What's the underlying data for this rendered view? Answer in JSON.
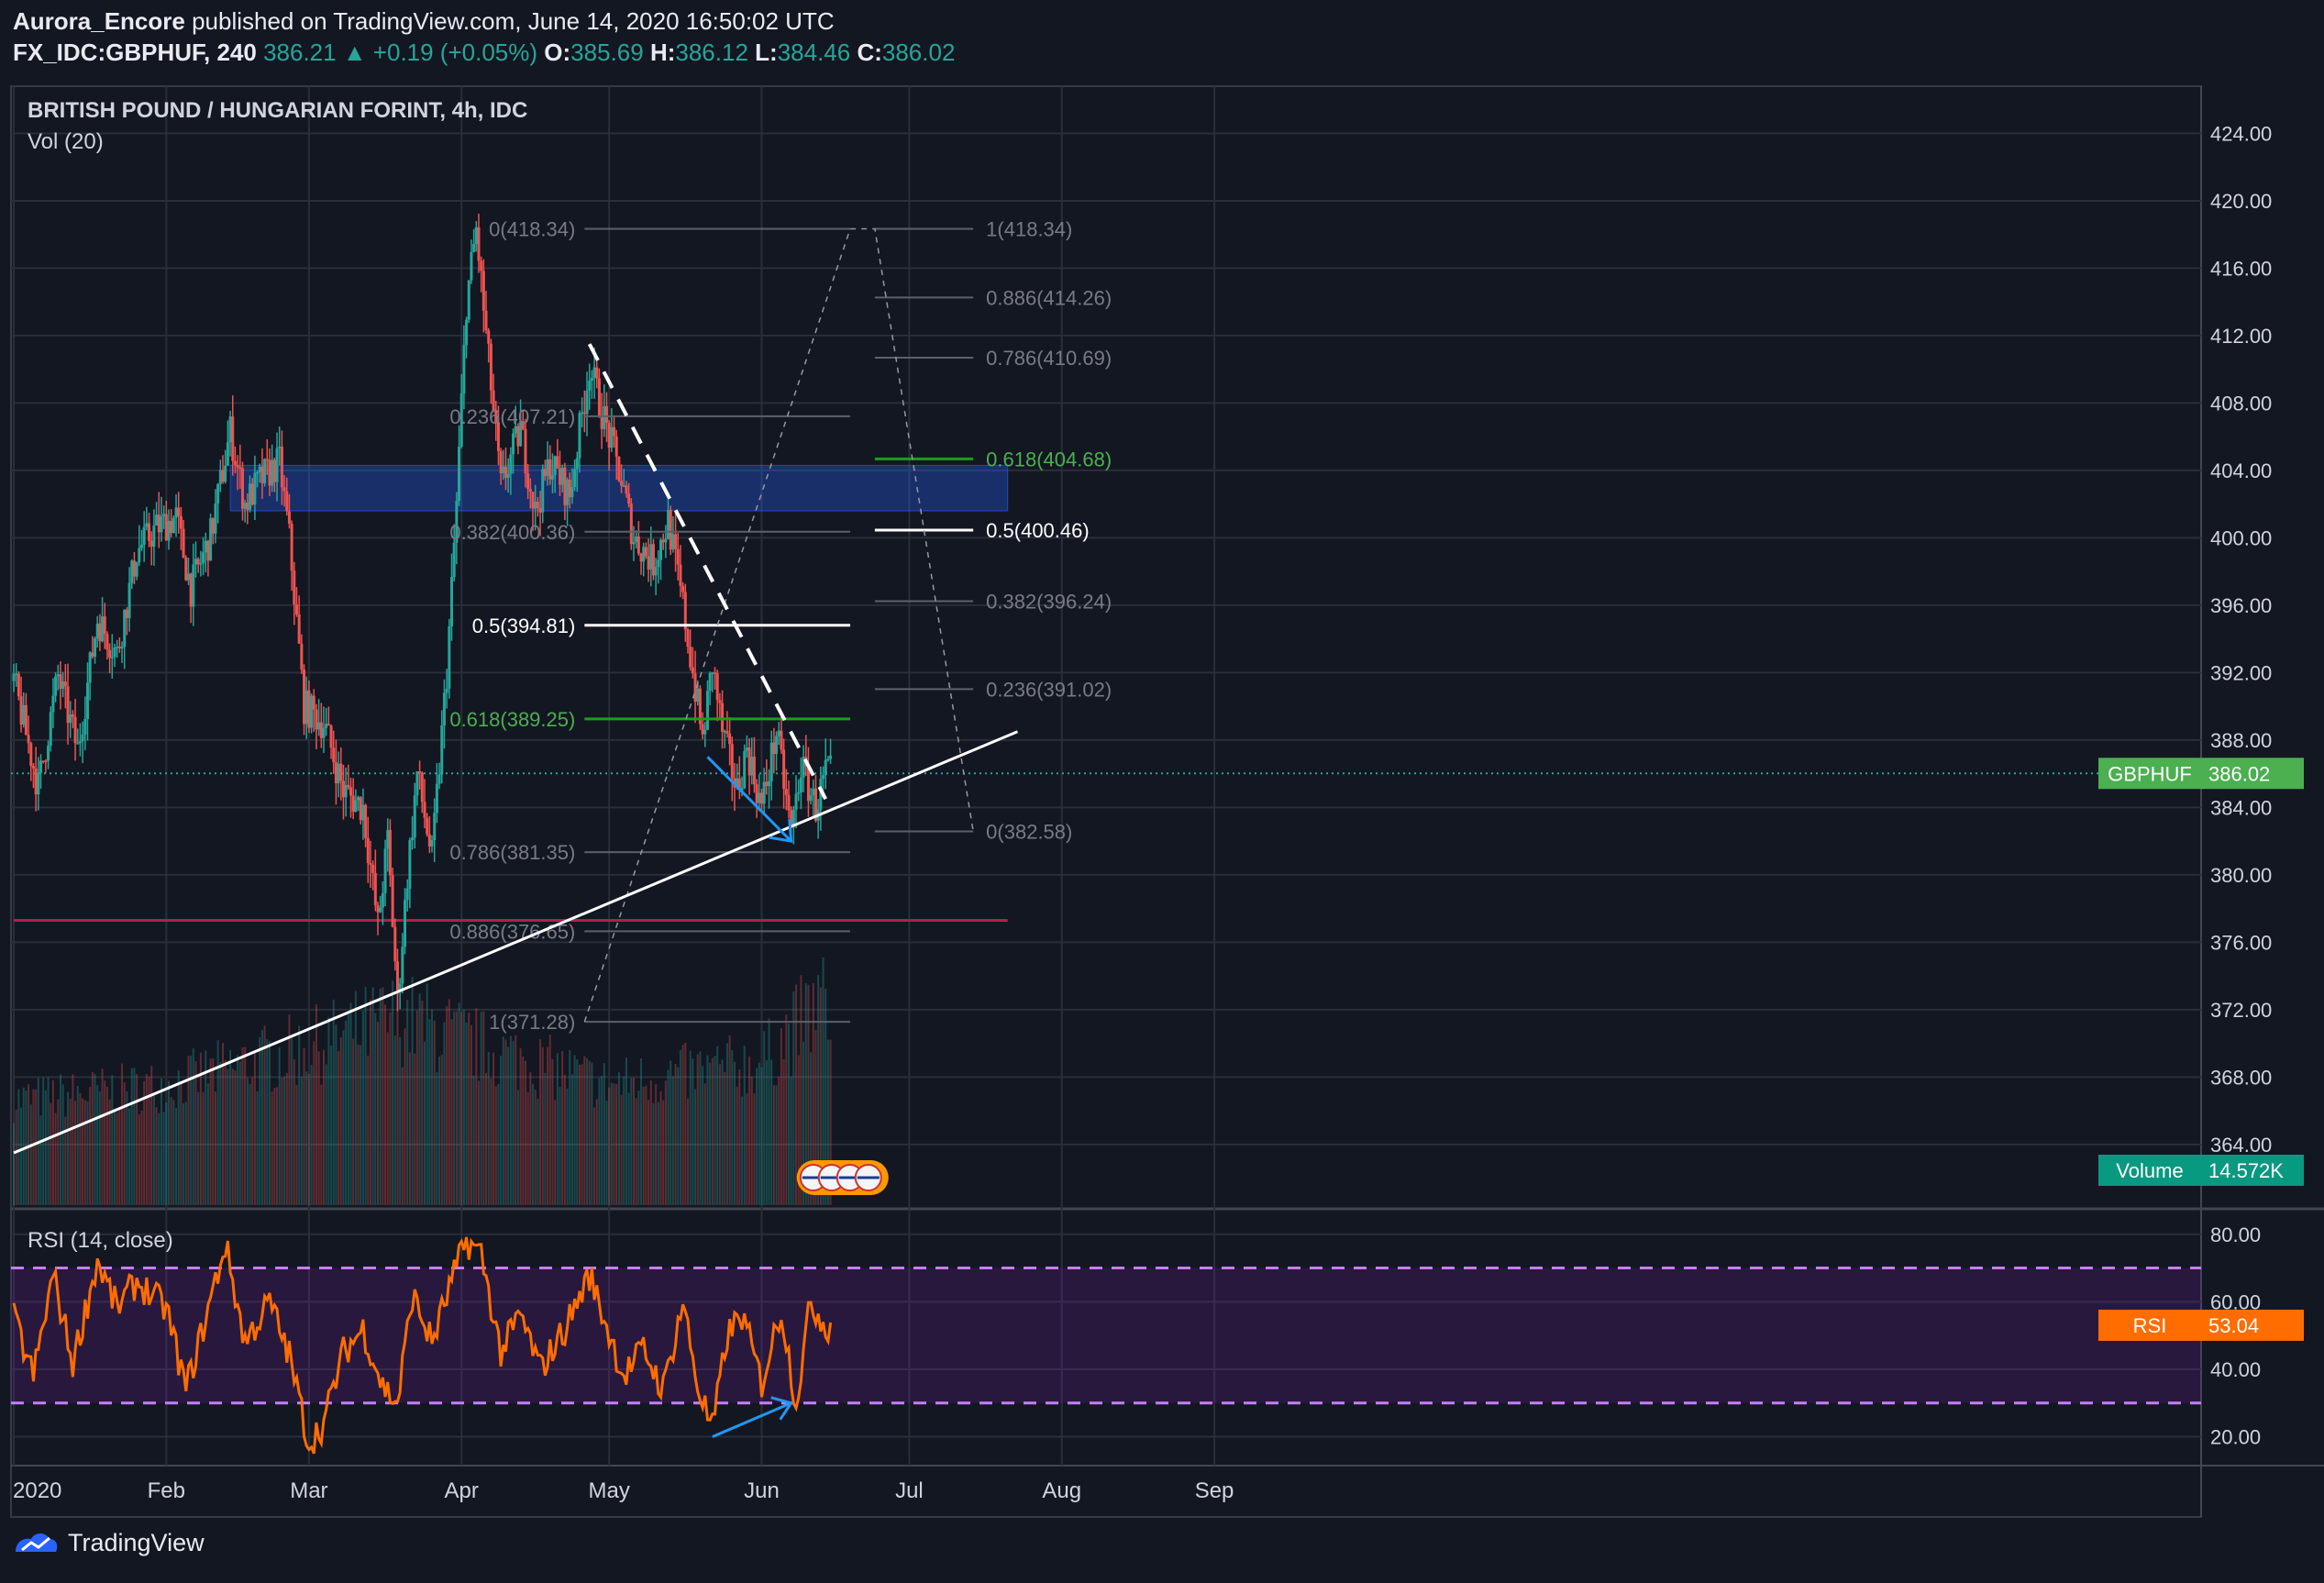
{
  "header": {
    "author": "Aurora_Encore",
    "published_text": "published on TradingView.com, June 14, 2020 16:50:02 UTC",
    "symbol": "FX_IDC:GBPHUF, 240",
    "last": "386.21",
    "change": "▲ +0.19 (+0.05%)",
    "o_label": "O:",
    "o": "385.69",
    "h_label": "H:",
    "h": "386.12",
    "l_label": "L:",
    "l": "384.46",
    "c_label": "C:",
    "c": "386.02"
  },
  "footer": {
    "brand": "TradingView"
  },
  "colors": {
    "background": "#131722",
    "grid": "#2a2e39",
    "up": "#26a69a",
    "down": "#ef5350",
    "rsi": "#ff6d00",
    "rsi_band": "#7b1fa2",
    "zone": "#2962ff",
    "support": "#880e4f"
  },
  "chart_data": [
    {
      "type": "candlestick",
      "title": "BRITISH POUND / HUNGARIAN FORINT, 4h, IDC",
      "subtitle": "Vol (20)",
      "x_labels": [
        "2020",
        "Feb",
        "Mar",
        "Apr",
        "May",
        "Jun",
        "Jul",
        "Aug",
        "Sep"
      ],
      "y_ticks": [
        "424.00",
        "420.00",
        "416.00",
        "412.00",
        "408.00",
        "404.00",
        "400.00",
        "396.00",
        "392.00",
        "388.00",
        "384.00",
        "380.00",
        "376.00",
        "372.00",
        "368.00",
        "364.00"
      ],
      "ylim": [
        360.4,
        426.8
      ],
      "grid": true,
      "last_price_label": {
        "name": "GBPHUF",
        "value": "386.02"
      },
      "volume_label": {
        "name": "Volume",
        "value": "14.572K"
      },
      "price_path": [
        [
          "2020-01-01",
          391.5
        ],
        [
          "2020-01-06",
          385.2
        ],
        [
          "2020-01-10",
          391.8
        ],
        [
          "2020-01-14",
          387.4
        ],
        [
          "2020-01-18",
          395.2
        ],
        [
          "2020-01-22",
          393.1
        ],
        [
          "2020-01-26",
          399.2
        ],
        [
          "2020-01-30",
          400.6
        ],
        [
          "2020-02-03",
          401.2
        ],
        [
          "2020-02-06",
          397.0
        ],
        [
          "2020-02-10",
          400.1
        ],
        [
          "2020-02-14",
          406.3
        ],
        [
          "2020-02-17",
          402.0
        ],
        [
          "2020-02-20",
          403.4
        ],
        [
          "2020-02-24",
          404.5
        ],
        [
          "2020-02-26",
          400.0
        ],
        [
          "2020-02-29",
          390.0
        ],
        [
          "2020-03-04",
          389.0
        ],
        [
          "2020-03-08",
          385.0
        ],
        [
          "2020-03-12",
          384.0
        ],
        [
          "2020-03-15",
          377.0
        ],
        [
          "2020-03-17",
          382.0
        ],
        [
          "2020-03-19",
          372.5
        ],
        [
          "2020-03-21",
          380.0
        ],
        [
          "2020-03-23",
          386.0
        ],
        [
          "2020-03-26",
          381.0
        ],
        [
          "2020-03-29",
          392.0
        ],
        [
          "2020-03-31",
          402.0
        ],
        [
          "2020-04-02",
          414.0
        ],
        [
          "2020-04-04",
          418.3
        ],
        [
          "2020-04-06",
          412.0
        ],
        [
          "2020-04-09",
          403.0
        ],
        [
          "2020-04-13",
          406.5
        ],
        [
          "2020-04-16",
          401.5
        ],
        [
          "2020-04-19",
          404.5
        ],
        [
          "2020-04-23",
          402.5
        ],
        [
          "2020-04-27",
          410.2
        ],
        [
          "2020-04-30",
          407.0
        ],
        [
          "2020-05-03",
          404.0
        ],
        [
          "2020-05-06",
          400.0
        ],
        [
          "2020-05-10",
          398.5
        ],
        [
          "2020-05-13",
          401.0
        ],
        [
          "2020-05-16",
          396.0
        ],
        [
          "2020-05-18",
          392.0
        ],
        [
          "2020-05-20",
          388.0
        ],
        [
          "2020-05-22",
          392.5
        ],
        [
          "2020-05-24",
          388.5
        ],
        [
          "2020-05-27",
          385.0
        ],
        [
          "2020-05-29",
          387.5
        ],
        [
          "2020-06-01",
          384.0
        ],
        [
          "2020-06-04",
          388.5
        ],
        [
          "2020-06-07",
          382.5
        ],
        [
          "2020-06-09",
          386.5
        ],
        [
          "2020-06-12",
          384.0
        ],
        [
          "2020-06-14",
          386.02
        ]
      ],
      "volume_path": [
        [
          "2020-01-01",
          0.45
        ],
        [
          "2020-02-01",
          0.55
        ],
        [
          "2020-03-01",
          0.8
        ],
        [
          "2020-03-20",
          1.0
        ],
        [
          "2020-04-05",
          0.8
        ],
        [
          "2020-05-01",
          0.55
        ],
        [
          "2020-06-01",
          0.7
        ],
        [
          "2020-06-13",
          1.1
        ]
      ],
      "zone": {
        "from": "2020-02-14",
        "to": "2020-07-21",
        "low": 401.6,
        "high": 404.3
      },
      "support_line": {
        "value": 377.3,
        "from": "2020-01-01",
        "to": "2020-07-21"
      },
      "last_price_line": 386.02,
      "trendlines": [
        {
          "name": "ascending-support",
          "from": [
            "2020-01-01",
            363.5
          ],
          "to": [
            "2020-07-23",
            388.5
          ],
          "style": "solid"
        },
        {
          "name": "descending-resistance",
          "from": [
            "2020-04-27",
            411.5
          ],
          "to": [
            "2020-06-14",
            384.5
          ],
          "style": "dashed"
        },
        {
          "name": "price-divergence",
          "from": [
            "2020-05-21",
            387.0
          ],
          "to": [
            "2020-06-07",
            382.0
          ],
          "style": "arrow"
        }
      ],
      "fib_retracement": {
        "from": "2020-04-26",
        "to": "2020-06-19",
        "levels": [
          {
            "label": "0(418.34)",
            "value": 418.34
          },
          {
            "label": "0.236(407.21)",
            "value": 407.21
          },
          {
            "label": "0.382(400.36)",
            "value": 400.36
          },
          {
            "label": "0.5(394.81)",
            "value": 394.81,
            "highlight": "white"
          },
          {
            "label": "0.618(389.25)",
            "value": 389.25,
            "highlight": "green"
          },
          {
            "label": "0.786(381.35)",
            "value": 381.35
          },
          {
            "label": "0.886(376.65)",
            "value": 376.65
          },
          {
            "label": "1(371.28)",
            "value": 371.28
          }
        ]
      },
      "fib_extension": {
        "from": "2020-06-24",
        "to": "2020-07-14",
        "levels": [
          {
            "label": "1(418.34)",
            "value": 418.34
          },
          {
            "label": "0.886(414.26)",
            "value": 414.26
          },
          {
            "label": "0.786(410.69)",
            "value": 410.69
          },
          {
            "label": "0.618(404.68)",
            "value": 404.68,
            "highlight": "green"
          },
          {
            "label": "0.5(400.46)",
            "value": 400.46,
            "highlight": "white"
          },
          {
            "label": "0.382(396.24)",
            "value": 396.24
          },
          {
            "label": "0.236(391.02)",
            "value": 391.02
          },
          {
            "label": "0(382.58)",
            "value": 382.58
          }
        ]
      },
      "projection_path": [
        [
          "2020-04-26",
          371.28
        ],
        [
          "2020-06-19",
          418.34
        ],
        [
          "2020-06-24",
          418.34
        ],
        [
          "2020-07-14",
          382.58
        ]
      ]
    },
    {
      "type": "line",
      "title": "RSI (14, close)",
      "y_ticks": [
        "80.00",
        "60.00",
        "40.00",
        "20.00"
      ],
      "ylim": [
        12,
        87
      ],
      "bands": {
        "upper": 70,
        "lower": 30
      },
      "last_value_label": {
        "name": "RSI",
        "value": "53.04"
      },
      "rsi_path": [
        [
          "2020-01-01",
          55
        ],
        [
          "2020-01-05",
          38
        ],
        [
          "2020-01-09",
          68
        ],
        [
          "2020-01-13",
          42
        ],
        [
          "2020-01-18",
          72
        ],
        [
          "2020-01-22",
          58
        ],
        [
          "2020-01-26",
          66
        ],
        [
          "2020-02-01",
          58
        ],
        [
          "2020-02-05",
          34
        ],
        [
          "2020-02-09",
          55
        ],
        [
          "2020-02-13",
          77
        ],
        [
          "2020-02-17",
          48
        ],
        [
          "2020-02-22",
          60
        ],
        [
          "2020-02-26",
          44
        ],
        [
          "2020-03-01",
          18
        ],
        [
          "2020-03-04",
          24
        ],
        [
          "2020-03-08",
          45
        ],
        [
          "2020-03-12",
          52
        ],
        [
          "2020-03-16",
          35
        ],
        [
          "2020-03-19",
          30
        ],
        [
          "2020-03-22",
          62
        ],
        [
          "2020-03-26",
          48
        ],
        [
          "2020-03-30",
          66
        ],
        [
          "2020-04-02",
          78
        ],
        [
          "2020-04-05",
          74
        ],
        [
          "2020-04-09",
          45
        ],
        [
          "2020-04-13",
          56
        ],
        [
          "2020-04-17",
          40
        ],
        [
          "2020-04-22",
          52
        ],
        [
          "2020-04-27",
          68
        ],
        [
          "2020-04-30",
          55
        ],
        [
          "2020-05-04",
          38
        ],
        [
          "2020-05-08",
          46
        ],
        [
          "2020-05-12",
          34
        ],
        [
          "2020-05-16",
          60
        ],
        [
          "2020-05-19",
          35
        ],
        [
          "2020-05-22",
          22
        ],
        [
          "2020-05-25",
          50
        ],
        [
          "2020-05-28",
          56
        ],
        [
          "2020-06-01",
          36
        ],
        [
          "2020-06-05",
          58
        ],
        [
          "2020-06-08",
          30
        ],
        [
          "2020-06-11",
          60
        ],
        [
          "2020-06-14",
          53.04
        ]
      ],
      "divergence_arrow": {
        "from": [
          "2020-05-22",
          20
        ],
        "to": [
          "2020-06-07",
          30
        ]
      }
    }
  ]
}
